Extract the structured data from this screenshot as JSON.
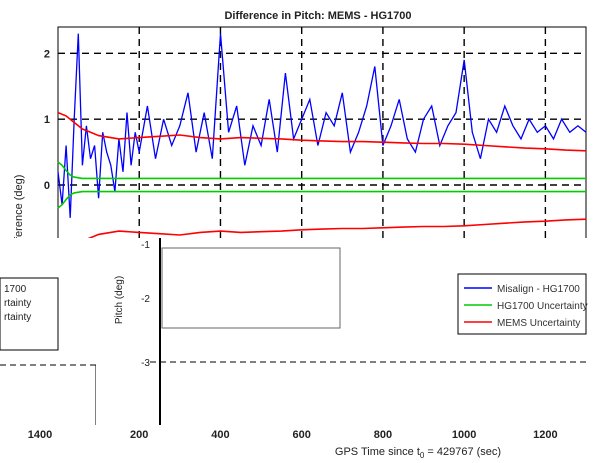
{
  "chart_data": {
    "type": "line",
    "title": "Difference in Pitch: MEMS - HG1700",
    "xlabel_prefix": "GPS Time since t",
    "xlabel_sub": "0",
    "xlabel_suffix": " = 429767 (sec)",
    "ylabel": "ference (deg)",
    "xlim": [
      0,
      1300
    ],
    "ylim": [
      -3.6,
      2.4
    ],
    "x_ticks": [
      "200",
      "400",
      "600",
      "800",
      "1000",
      "1200"
    ],
    "x_tick_values": [
      200,
      400,
      600,
      800,
      1000,
      1200
    ],
    "y_ticks": [
      "2",
      "1",
      "0",
      "-1",
      "-2",
      "-3"
    ],
    "y_tick_values": [
      2,
      1,
      0,
      -1,
      -2,
      -3
    ],
    "grid": true,
    "legend_placement": "right",
    "series": [
      {
        "name": "Misalign - HG1700",
        "color": "#0000ff",
        "x": [
          0,
          10,
          20,
          30,
          40,
          50,
          60,
          70,
          80,
          90,
          100,
          110,
          120,
          130,
          140,
          150,
          160,
          170,
          180,
          190,
          200,
          220,
          240,
          260,
          280,
          300,
          320,
          340,
          360,
          380,
          400,
          420,
          440,
          460,
          480,
          500,
          520,
          540,
          560,
          580,
          600,
          620,
          640,
          660,
          680,
          700,
          720,
          740,
          760,
          780,
          800,
          820,
          840,
          860,
          880,
          900,
          920,
          940,
          960,
          980,
          1000,
          1020,
          1040,
          1060,
          1080,
          1100,
          1120,
          1140,
          1160,
          1180,
          1200,
          1220,
          1240,
          1260,
          1280,
          1300
        ],
        "y": [
          0.2,
          -0.3,
          0.6,
          -0.5,
          1.0,
          2.3,
          0.3,
          0.9,
          0.4,
          0.6,
          -0.2,
          0.8,
          0.5,
          0.3,
          -0.1,
          0.7,
          0.2,
          1.1,
          0.3,
          0.8,
          0.5,
          1.2,
          0.4,
          1.0,
          0.6,
          0.9,
          1.4,
          0.5,
          1.1,
          0.4,
          2.3,
          0.8,
          1.2,
          0.3,
          0.9,
          0.6,
          1.3,
          0.5,
          1.7,
          0.7,
          1.0,
          1.3,
          0.6,
          1.1,
          0.9,
          1.4,
          0.5,
          0.8,
          1.2,
          1.8,
          0.6,
          0.9,
          1.3,
          0.7,
          0.5,
          1.0,
          1.2,
          0.6,
          0.9,
          1.1,
          1.9,
          0.8,
          0.4,
          1.0,
          0.8,
          1.2,
          0.9,
          0.7,
          1.0,
          0.8,
          0.9,
          0.7,
          1.0,
          0.8,
          0.9,
          0.8
        ]
      },
      {
        "name": "HG1700 Uncertainty",
        "color": "#00cc00",
        "x": [
          0,
          10,
          20,
          30,
          40,
          60,
          80,
          100,
          150,
          200,
          300,
          400,
          500,
          600,
          700,
          800,
          900,
          1000,
          1100,
          1200,
          1300
        ],
        "y": [
          0.35,
          0.3,
          0.22,
          0.15,
          0.12,
          0.1,
          0.1,
          0.1,
          0.1,
          0.1,
          0.1,
          0.1,
          0.1,
          0.1,
          0.1,
          0.1,
          0.1,
          0.1,
          0.1,
          0.1,
          0.1
        ]
      },
      {
        "name": "MEMS Uncertainty",
        "color": "#ff0000",
        "x": [
          0,
          20,
          40,
          60,
          80,
          100,
          150,
          200,
          250,
          300,
          350,
          400,
          450,
          500,
          550,
          600,
          650,
          700,
          750,
          800,
          850,
          900,
          950,
          1000,
          1050,
          1100,
          1150,
          1200,
          1250,
          1300
        ],
        "y": [
          1.1,
          1.05,
          0.95,
          0.85,
          0.8,
          0.75,
          0.7,
          0.72,
          0.74,
          0.76,
          0.72,
          0.7,
          0.72,
          0.71,
          0.7,
          0.68,
          0.67,
          0.66,
          0.66,
          0.65,
          0.64,
          0.63,
          0.63,
          0.62,
          0.6,
          0.58,
          0.56,
          0.55,
          0.53,
          0.52
        ]
      }
    ],
    "inset_fragment": {
      "y_ticks": [
        "-1",
        "-2",
        "-3"
      ],
      "ylabel": "Pitch (deg)",
      "left_tick": "1400",
      "left_texts": [
        "1700",
        "rtainty",
        "rtainty"
      ]
    }
  }
}
